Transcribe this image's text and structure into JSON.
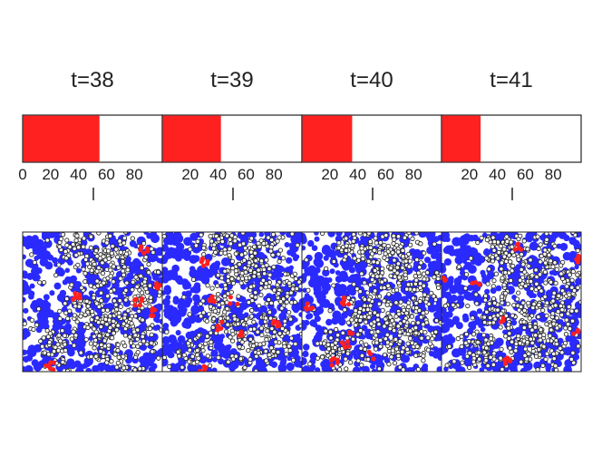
{
  "colors": {
    "fill": "#ff2020",
    "blue": "#2a2aff",
    "dark": "#2b2b2b",
    "frame": "#222222"
  },
  "chart_data": [
    {
      "type": "bar",
      "title": "t=38",
      "value": 55,
      "xlim": [
        0,
        100
      ],
      "tick_labels": [
        "0",
        "20",
        "40",
        "60",
        "80"
      ],
      "tick_values": [
        0,
        20,
        40,
        60,
        80
      ],
      "seed": 11
    },
    {
      "type": "bar",
      "title": "t=39",
      "value": 42,
      "xlim": [
        0,
        100
      ],
      "tick_labels": [
        "20",
        "40",
        "60",
        "80"
      ],
      "tick_values": [
        20,
        40,
        60,
        80
      ],
      "seed": 23
    },
    {
      "type": "bar",
      "title": "t=40",
      "value": 36,
      "xlim": [
        0,
        100
      ],
      "tick_labels": [
        "20",
        "40",
        "60",
        "80"
      ],
      "tick_values": [
        20,
        40,
        60,
        80
      ],
      "seed": 37
    },
    {
      "type": "bar",
      "title": "t=41",
      "value": 28,
      "xlim": [
        0,
        100
      ],
      "tick_labels": [
        "20",
        "40",
        "60",
        "80"
      ],
      "tick_values": [
        20,
        40,
        60,
        80
      ],
      "seed": 53
    }
  ]
}
